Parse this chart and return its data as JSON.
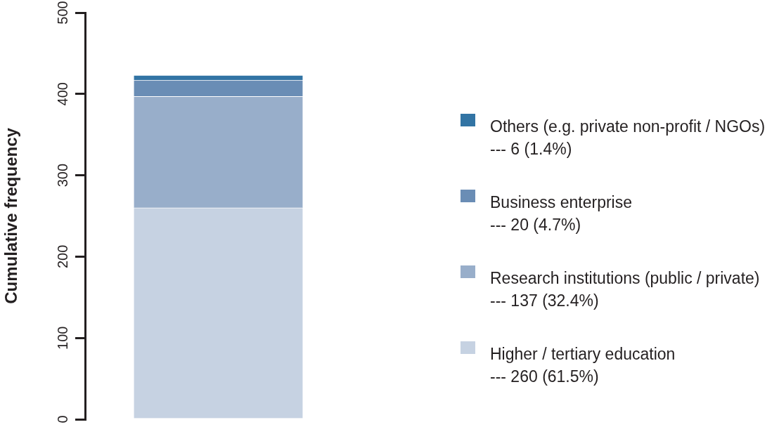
{
  "chart_data": {
    "type": "bar",
    "stacked": true,
    "categories": [
      null
    ],
    "ylabel": "Cumulative frequency",
    "ylim": [
      0,
      500
    ],
    "yticks": [
      0,
      100,
      200,
      300,
      400,
      500
    ],
    "legend": "right",
    "series": [
      {
        "name": "Higher / tertiary education\n--- 260 (61.5%)",
        "color": "#c6d2e2",
        "values": [
          260
        ]
      },
      {
        "name": "Research institutions (public / private)\n--- 137 (32.4%)",
        "color": "#98aeca",
        "values": [
          137
        ]
      },
      {
        "name": "Business enterprise\n--- 20 (4.7%)",
        "color": "#6a8db5",
        "values": [
          20
        ]
      },
      {
        "name": "Others (e.g. private non-profit / NGOs)\n--- 6 (1.4%)",
        "color": "#3274a4",
        "values": [
          6
        ]
      }
    ]
  }
}
